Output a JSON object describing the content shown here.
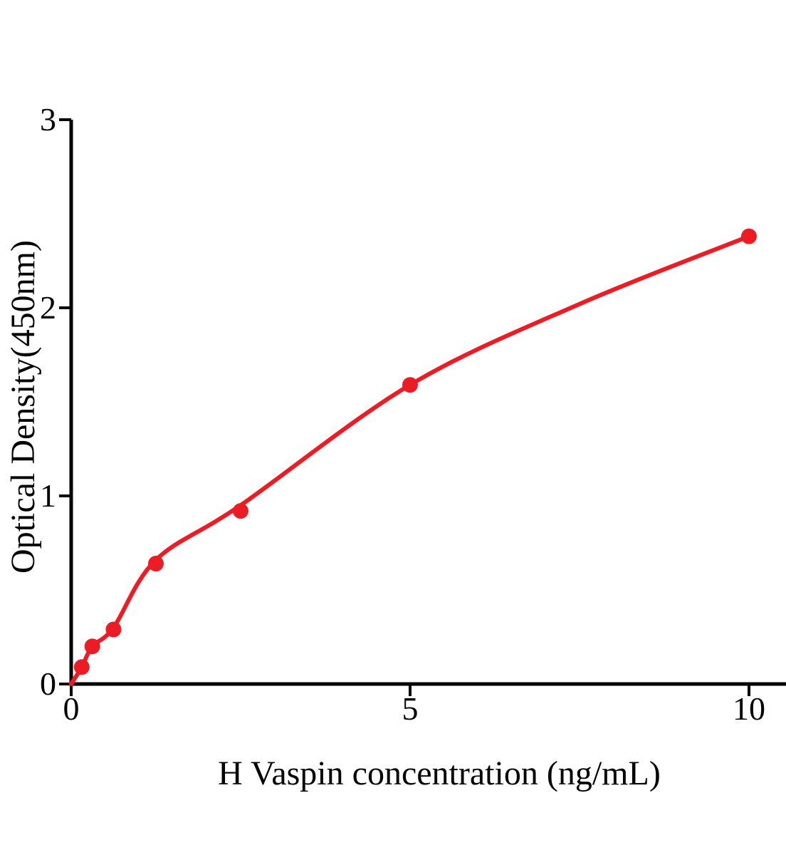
{
  "figure": {
    "kind": "ELISA standard curve plot"
  },
  "chart_data": {
    "type": "scatter",
    "title": "",
    "xlabel": "H Vaspin concentration (ng/mL)",
    "ylabel": "Optical Density(450nm)",
    "x": [
      0.156,
      0.312,
      0.625,
      1.25,
      2.5,
      5,
      10
    ],
    "y": [
      0.09,
      0.2,
      0.29,
      0.64,
      0.92,
      1.59,
      2.38
    ],
    "fit_curve": {
      "x": [
        0,
        0.156,
        0.312,
        0.625,
        1.25,
        2.5,
        5,
        7.5,
        10
      ],
      "y": [
        0,
        0.09,
        0.2,
        0.3,
        0.66,
        0.95,
        1.59,
        2.02,
        2.38
      ]
    },
    "xticks": [
      0,
      5,
      10
    ],
    "yticks": [
      0,
      1,
      2,
      3
    ],
    "xlim": [
      0,
      10.55
    ],
    "ylim": [
      0,
      3
    ],
    "grid": "off",
    "legend": "none",
    "point_color": "#ED1C24",
    "line_color": "#ED1C24",
    "axis_color": "#000000",
    "background_color": "#FFFFFF"
  }
}
